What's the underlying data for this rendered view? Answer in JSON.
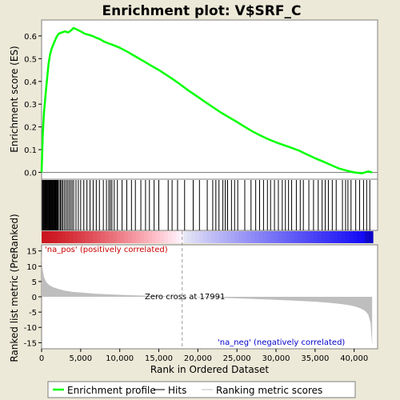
{
  "chart_data": {
    "type": "line",
    "title": "Enrichment plot: V$SRF_C",
    "panels": {
      "es": {
        "ylabel": "Enrichment score (ES)",
        "ylim": [
          -0.03,
          0.67
        ],
        "yticks": [
          0.0,
          0.1,
          0.2,
          0.3,
          0.4,
          0.5,
          0.6
        ],
        "ytick_labels": [
          "0.0",
          "0.1",
          "0.2",
          "0.3",
          "0.4",
          "0.5",
          "0.6"
        ]
      },
      "metric": {
        "ylabel": "Ranked list metric (PreRanked)",
        "ylim": [
          -17,
          17
        ],
        "yticks": [
          -15,
          -10,
          -5,
          0,
          5,
          10,
          15
        ],
        "ytick_labels": [
          "-15",
          "-10",
          "-5",
          "0",
          "5",
          "10",
          "15"
        ],
        "pos_label": "'na_pos' (positively correlated)",
        "neg_label": "'na_neg' (negatively correlated)",
        "zero_cross_label": "Zero cross at 17991",
        "zero_cross": 17991
      }
    },
    "xlabel": "Rank in Ordered Dataset",
    "xlim": [
      0,
      43000
    ],
    "xticks": [
      0,
      5000,
      10000,
      15000,
      20000,
      25000,
      30000,
      35000,
      40000
    ],
    "xtick_labels": [
      "0",
      "5,000",
      "10,000",
      "15,000",
      "20,000",
      "25,000",
      "30,000",
      "35,000",
      "40,000"
    ],
    "n_genes": 42400,
    "series": [
      {
        "name": "Enrichment profile",
        "color": "#00ff00",
        "x": [
          0,
          150,
          300,
          500,
          700,
          900,
          1100,
          1300,
          1600,
          1900,
          2200,
          2600,
          3000,
          3400,
          3800,
          4100,
          4500,
          5000,
          5500,
          6000,
          6500,
          7000,
          7500,
          8000,
          8500,
          9000,
          9500,
          10000,
          11000,
          12000,
          13000,
          14000,
          15000,
          16000,
          17000,
          18000,
          19000,
          20000,
          21000,
          22000,
          23000,
          24000,
          25000,
          26000,
          27000,
          28000,
          29000,
          30000,
          31000,
          32000,
          33000,
          34000,
          35000,
          36000,
          37000,
          38000,
          39000,
          40000,
          41000,
          41800,
          42300
        ],
        "values": [
          0.0,
          0.17,
          0.26,
          0.34,
          0.41,
          0.48,
          0.52,
          0.545,
          0.57,
          0.595,
          0.61,
          0.615,
          0.62,
          0.615,
          0.625,
          0.635,
          0.628,
          0.62,
          0.61,
          0.605,
          0.6,
          0.592,
          0.585,
          0.575,
          0.568,
          0.562,
          0.555,
          0.548,
          0.53,
          0.51,
          0.49,
          0.47,
          0.45,
          0.428,
          0.405,
          0.38,
          0.355,
          0.332,
          0.308,
          0.285,
          0.262,
          0.242,
          0.222,
          0.2,
          0.18,
          0.162,
          0.146,
          0.132,
          0.12,
          0.108,
          0.095,
          0.078,
          0.062,
          0.048,
          0.033,
          0.018,
          0.008,
          0.0,
          -0.004,
          0.004,
          0.0
        ]
      },
      {
        "name": "Hits",
        "color": "#000000",
        "hits": [
          100,
          200,
          300,
          380,
          460,
          540,
          620,
          700,
          780,
          860,
          940,
          1020,
          1100,
          1180,
          1260,
          1340,
          1420,
          1500,
          1580,
          1660,
          1740,
          1820,
          1900,
          2000,
          2100,
          2250,
          2400,
          2550,
          2700,
          2900,
          3100,
          3300,
          3500,
          3700,
          3900,
          4100,
          4400,
          4700,
          5000,
          5400,
          5800,
          6200,
          6600,
          7000,
          7400,
          7900,
          8300,
          8600,
          8800,
          9000,
          9300,
          9700,
          10300,
          10900,
          11500,
          12000,
          12700,
          13300,
          13800,
          14400,
          15000,
          16200,
          16700,
          17400,
          18300,
          19400,
          20200,
          21200,
          21900,
          22300,
          22700,
          23200,
          23500,
          23800,
          24300,
          24700,
          25100,
          26000,
          26800,
          27400,
          27900,
          28400,
          28900,
          29300,
          29800,
          30300,
          30800,
          31200,
          31600,
          32000,
          32600,
          33100,
          33500,
          34200,
          34800,
          35400,
          35900,
          36300,
          36700,
          37200,
          37700,
          38500,
          38900,
          39200,
          39600,
          40200,
          40700,
          41200,
          41600,
          42000
        ]
      },
      {
        "name": "Ranking metric scores",
        "color": "#bebebe",
        "x": [
          0,
          100,
          300,
          600,
          1000,
          1500,
          2200,
          3000,
          4000,
          5500,
          7000,
          9000,
          11000,
          13000,
          15000,
          17000,
          17991,
          20000,
          23000,
          26000,
          29000,
          32000,
          35000,
          37000,
          38500,
          39500,
          40300,
          40900,
          41400,
          41800,
          42100,
          42300
        ],
        "values": [
          15.2,
          9.5,
          6.5,
          4.8,
          3.8,
          3.1,
          2.5,
          2.0,
          1.6,
          1.3,
          1.0,
          0.75,
          0.55,
          0.4,
          0.25,
          0.1,
          0.0,
          -0.15,
          -0.35,
          -0.6,
          -0.9,
          -1.2,
          -1.6,
          -2.0,
          -2.4,
          -2.8,
          -3.3,
          -3.9,
          -4.6,
          -5.8,
          -8.5,
          -16.0
        ]
      }
    ],
    "legend": {
      "placement": "bottom",
      "entries": [
        "Enrichment profile",
        "Hits",
        "Ranking metric scores"
      ]
    }
  }
}
